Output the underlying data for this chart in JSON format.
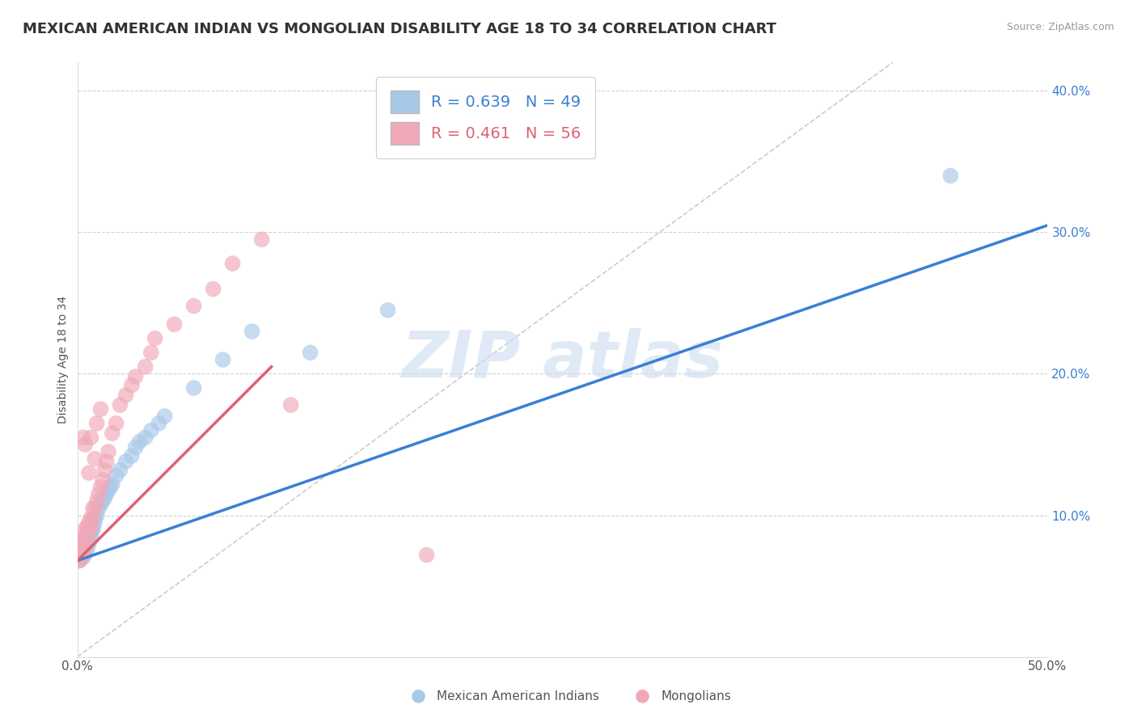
{
  "title": "MEXICAN AMERICAN INDIAN VS MONGOLIAN DISABILITY AGE 18 TO 34 CORRELATION CHART",
  "source": "Source: ZipAtlas.com",
  "ylabel": "Disability Age 18 to 34",
  "xlim": [
    0.0,
    0.5
  ],
  "ylim": [
    0.0,
    0.42
  ],
  "xticks": [
    0.0,
    0.1,
    0.2,
    0.3,
    0.4,
    0.5
  ],
  "xticklabels": [
    "0.0%",
    "",
    "",
    "",
    "",
    "50.0%"
  ],
  "yticks": [
    0.0,
    0.1,
    0.2,
    0.3,
    0.4
  ],
  "yticklabels_right": [
    "",
    "10.0%",
    "20.0%",
    "30.0%",
    "40.0%"
  ],
  "blue_R": 0.639,
  "blue_N": 49,
  "pink_R": 0.461,
  "pink_N": 56,
  "blue_color": "#a8c8e8",
  "pink_color": "#f0a8b8",
  "blue_line_color": "#3a7fd5",
  "pink_line_color": "#e06070",
  "watermark_color": "#ccddf0",
  "title_fontsize": 13,
  "label_fontsize": 10,
  "tick_fontsize": 11,
  "legend_fontsize": 14,
  "blue_scatter_x": [
    0.001,
    0.001,
    0.002,
    0.002,
    0.003,
    0.003,
    0.003,
    0.004,
    0.004,
    0.004,
    0.005,
    0.005,
    0.005,
    0.005,
    0.006,
    0.006,
    0.006,
    0.007,
    0.007,
    0.007,
    0.008,
    0.008,
    0.009,
    0.009,
    0.01,
    0.011,
    0.012,
    0.013,
    0.014,
    0.015,
    0.016,
    0.017,
    0.018,
    0.02,
    0.022,
    0.025,
    0.028,
    0.03,
    0.032,
    0.035,
    0.038,
    0.042,
    0.045,
    0.06,
    0.075,
    0.09,
    0.12,
    0.16,
    0.45
  ],
  "blue_scatter_y": [
    0.073,
    0.068,
    0.071,
    0.075,
    0.072,
    0.078,
    0.07,
    0.073,
    0.076,
    0.08,
    0.075,
    0.082,
    0.078,
    0.085,
    0.08,
    0.088,
    0.083,
    0.085,
    0.09,
    0.088,
    0.09,
    0.092,
    0.095,
    0.098,
    0.1,
    0.105,
    0.108,
    0.11,
    0.112,
    0.115,
    0.118,
    0.12,
    0.122,
    0.128,
    0.132,
    0.138,
    0.142,
    0.148,
    0.152,
    0.155,
    0.16,
    0.165,
    0.17,
    0.19,
    0.21,
    0.23,
    0.215,
    0.245,
    0.34
  ],
  "pink_scatter_x": [
    0.001,
    0.001,
    0.001,
    0.001,
    0.002,
    0.002,
    0.002,
    0.002,
    0.002,
    0.003,
    0.003,
    0.003,
    0.003,
    0.003,
    0.004,
    0.004,
    0.004,
    0.004,
    0.005,
    0.005,
    0.005,
    0.006,
    0.006,
    0.006,
    0.007,
    0.007,
    0.007,
    0.008,
    0.008,
    0.009,
    0.009,
    0.01,
    0.01,
    0.011,
    0.012,
    0.012,
    0.013,
    0.014,
    0.015,
    0.016,
    0.018,
    0.02,
    0.022,
    0.025,
    0.028,
    0.03,
    0.035,
    0.038,
    0.04,
    0.05,
    0.06,
    0.07,
    0.08,
    0.095,
    0.11,
    0.18
  ],
  "pink_scatter_y": [
    0.068,
    0.07,
    0.072,
    0.075,
    0.07,
    0.073,
    0.075,
    0.078,
    0.08,
    0.072,
    0.075,
    0.078,
    0.082,
    0.155,
    0.08,
    0.085,
    0.09,
    0.15,
    0.082,
    0.088,
    0.092,
    0.088,
    0.095,
    0.13,
    0.092,
    0.098,
    0.155,
    0.098,
    0.105,
    0.105,
    0.14,
    0.11,
    0.165,
    0.115,
    0.12,
    0.175,
    0.125,
    0.132,
    0.138,
    0.145,
    0.158,
    0.165,
    0.178,
    0.185,
    0.192,
    0.198,
    0.205,
    0.215,
    0.225,
    0.235,
    0.248,
    0.26,
    0.278,
    0.295,
    0.178,
    0.072
  ],
  "blue_line_x": [
    0.0,
    0.5
  ],
  "blue_line_y": [
    0.068,
    0.305
  ],
  "pink_line_x": [
    0.0,
    0.1
  ],
  "pink_line_y": [
    0.068,
    0.205
  ],
  "diag_line_color": "#cccccc",
  "diag_line_x": [
    0.0,
    0.42
  ],
  "diag_line_y": [
    0.0,
    0.42
  ]
}
